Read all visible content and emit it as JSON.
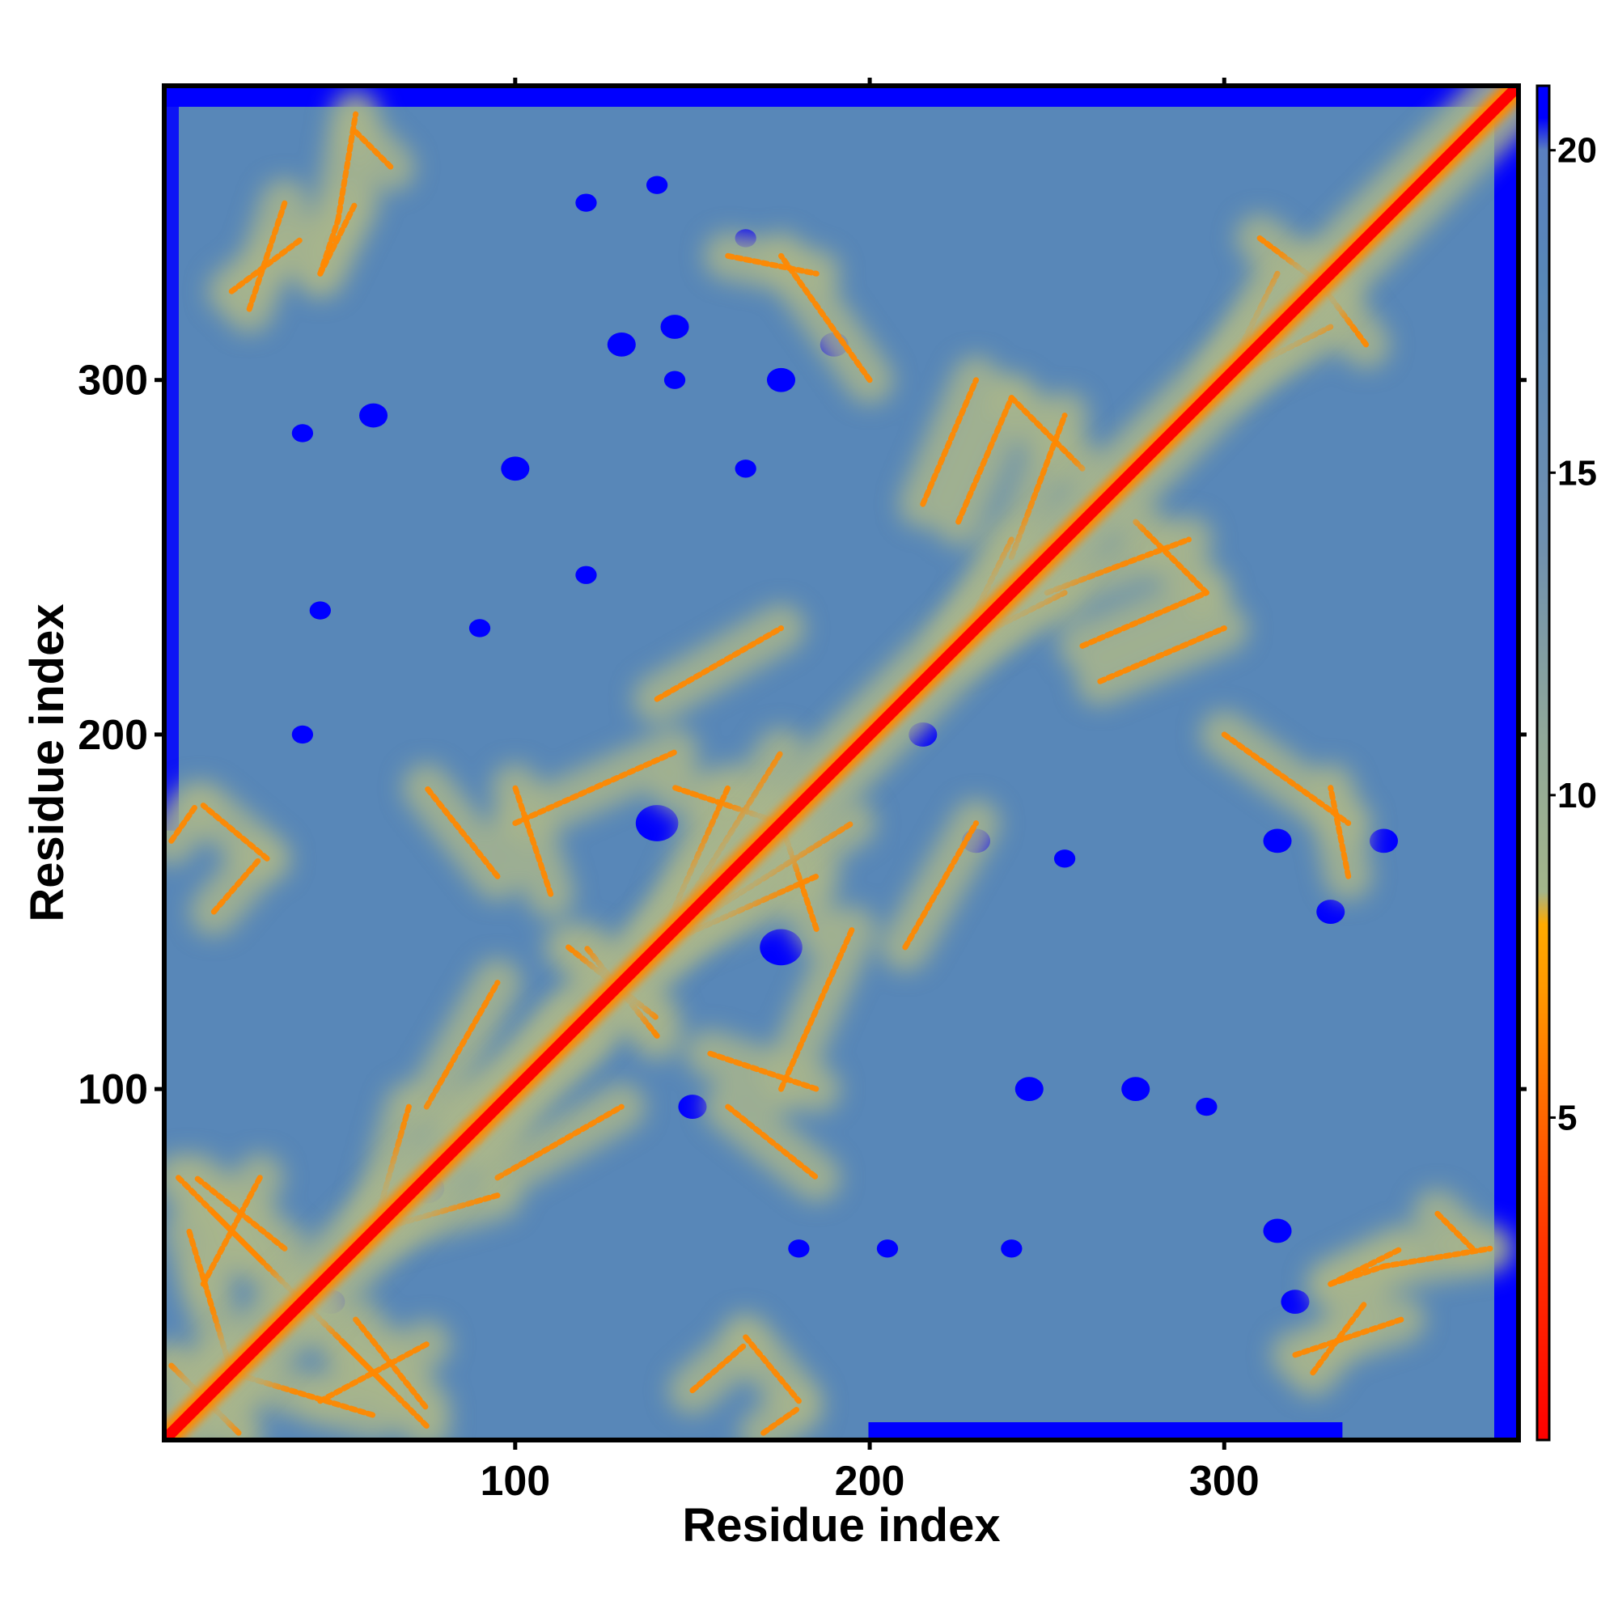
{
  "chart_data": {
    "type": "heatmap",
    "title": "",
    "xlabel": "Residue index",
    "ylabel": "Residue index",
    "n_residues": 383,
    "xlim": [
      1,
      383
    ],
    "ylim": [
      1,
      383
    ],
    "x_ticks": [
      100,
      200,
      300
    ],
    "y_ticks": [
      100,
      200,
      300
    ],
    "x_tick_labels": [
      "100",
      "200",
      "300"
    ],
    "y_tick_labels": [
      "100",
      "200",
      "300"
    ],
    "colorbar": {
      "range": [
        0,
        21
      ],
      "ticks": [
        5,
        10,
        15,
        20
      ],
      "tick_labels": [
        "5",
        "10",
        "15",
        "20"
      ],
      "stops": [
        {
          "value": 0,
          "color": "#ff0000"
        },
        {
          "value": 3,
          "color": "#ff3300"
        },
        {
          "value": 5,
          "color": "#ff6600"
        },
        {
          "value": 7,
          "color": "#ff9900"
        },
        {
          "value": 8,
          "color": "#ffaa00"
        },
        {
          "value": 8.5,
          "color": "#a3b58a"
        },
        {
          "value": 11,
          "color": "#8fa79a"
        },
        {
          "value": 14,
          "color": "#6e8fb0"
        },
        {
          "value": 18,
          "color": "#5887b8"
        },
        {
          "value": 20,
          "color": "#5a7fbf"
        },
        {
          "value": 20.5,
          "color": "#0000ff"
        },
        {
          "value": 21,
          "color": "#0000ff"
        }
      ]
    },
    "colors": {
      "diagonal": "#ff0000",
      "contact_orange": "#ff8800",
      "mid_band": "#a8b58c",
      "background": "#5887b8",
      "far": "#0000ff"
    },
    "contact_segments": [
      {
        "from": [
          3,
          22
        ],
        "to": [
          22,
          3
        ],
        "value": 5
      },
      {
        "from": [
          5,
          75
        ],
        "to": [
          40,
          40
        ],
        "value": 7
      },
      {
        "from": [
          15,
          65
        ],
        "to": [
          28,
          52
        ],
        "value": 6
      },
      {
        "from": [
          20,
          20
        ],
        "to": [
          60,
          8
        ],
        "value": 7
      },
      {
        "from": [
          45,
          12
        ],
        "to": [
          75,
          28
        ],
        "value": 6
      },
      {
        "from": [
          55,
          35
        ],
        "to": [
          75,
          10
        ],
        "value": 6
      },
      {
        "from": [
          60,
          60
        ],
        "to": [
          95,
          70
        ],
        "value": 7
      },
      {
        "from": [
          75,
          95
        ],
        "to": [
          95,
          130
        ],
        "value": 7
      },
      {
        "from": [
          85,
          90
        ],
        "to": [
          120,
          115
        ],
        "value": 6
      },
      {
        "from": [
          100,
          175
        ],
        "to": [
          145,
          195
        ],
        "value": 7
      },
      {
        "from": [
          140,
          140
        ],
        "to": [
          185,
          160
        ],
        "value": 6
      },
      {
        "from": [
          150,
          155
        ],
        "to": [
          175,
          195
        ],
        "value": 7
      },
      {
        "from": [
          155,
          110
        ],
        "to": [
          185,
          100
        ],
        "value": 6
      },
      {
        "from": [
          160,
          95
        ],
        "to": [
          185,
          75
        ],
        "value": 7
      },
      {
        "from": [
          140,
          115
        ],
        "to": [
          120,
          140
        ],
        "value": 6
      },
      {
        "from": [
          175,
          175
        ],
        "to": [
          185,
          145
        ],
        "value": 6
      },
      {
        "from": [
          210,
          140
        ],
        "to": [
          230,
          175
        ],
        "value": 8
      },
      {
        "from": [
          225,
          225
        ],
        "to": [
          240,
          255
        ],
        "value": 6
      },
      {
        "from": [
          215,
          265
        ],
        "to": [
          230,
          300
        ],
        "value": 7
      },
      {
        "from": [
          240,
          295
        ],
        "to": [
          260,
          275
        ],
        "value": 6
      },
      {
        "from": [
          250,
          240
        ],
        "to": [
          290,
          255
        ],
        "value": 7
      },
      {
        "from": [
          260,
          225
        ],
        "to": [
          295,
          240
        ],
        "value": 6
      },
      {
        "from": [
          300,
          300
        ],
        "to": [
          330,
          315
        ],
        "value": 6
      },
      {
        "from": [
          310,
          340
        ],
        "to": [
          330,
          325
        ],
        "value": 7
      },
      {
        "from": [
          160,
          335
        ],
        "to": [
          185,
          330
        ],
        "value": 7
      },
      {
        "from": [
          165,
          30
        ],
        "to": [
          180,
          12
        ],
        "value": 7
      },
      {
        "from": [
          300,
          200
        ],
        "to": [
          335,
          175
        ],
        "value": 6
      },
      {
        "from": [
          330,
          45
        ],
        "to": [
          345,
          50
        ],
        "value": 7
      },
      {
        "from": [
          345,
          50
        ],
        "to": [
          375,
          55
        ],
        "value": 6
      },
      {
        "from": [
          325,
          20
        ],
        "to": [
          340,
          40
        ],
        "value": 7
      },
      {
        "from": [
          15,
          150
        ],
        "to": [
          28,
          165
        ],
        "value": 6
      },
      {
        "from": [
          3,
          170
        ],
        "to": [
          10,
          180
        ],
        "value": 8
      },
      {
        "from": [
          45,
          330
        ],
        "to": [
          55,
          350
        ],
        "value": 6
      },
      {
        "from": [
          25,
          320
        ],
        "to": [
          35,
          350
        ],
        "value": 7
      },
      {
        "from": [
          55,
          370
        ],
        "to": [
          65,
          360
        ],
        "value": 6
      }
    ],
    "far_blobs": [
      {
        "x": 140,
        "y": 175,
        "r": 6
      },
      {
        "x": 175,
        "y": 140,
        "r": 6
      },
      {
        "x": 48,
        "y": 40,
        "r": 4
      },
      {
        "x": 75,
        "y": 72,
        "r": 5
      },
      {
        "x": 150,
        "y": 95,
        "r": 4
      },
      {
        "x": 180,
        "y": 55,
        "r": 3
      },
      {
        "x": 215,
        "y": 200,
        "r": 4
      },
      {
        "x": 230,
        "y": 170,
        "r": 4
      },
      {
        "x": 245,
        "y": 100,
        "r": 4
      },
      {
        "x": 275,
        "y": 100,
        "r": 4
      },
      {
        "x": 295,
        "y": 95,
        "r": 3
      },
      {
        "x": 330,
        "y": 150,
        "r": 4
      },
      {
        "x": 315,
        "y": 170,
        "r": 4
      },
      {
        "x": 345,
        "y": 170,
        "r": 4
      },
      {
        "x": 255,
        "y": 165,
        "r": 3
      },
      {
        "x": 315,
        "y": 60,
        "r": 4
      },
      {
        "x": 320,
        "y": 40,
        "r": 4
      },
      {
        "x": 240,
        "y": 55,
        "r": 3
      },
      {
        "x": 205,
        "y": 55,
        "r": 3
      },
      {
        "x": 175,
        "y": 300,
        "r": 4
      },
      {
        "x": 190,
        "y": 310,
        "r": 4
      },
      {
        "x": 165,
        "y": 275,
        "r": 3
      },
      {
        "x": 60,
        "y": 290,
        "r": 4
      },
      {
        "x": 40,
        "y": 285,
        "r": 3
      },
      {
        "x": 100,
        "y": 275,
        "r": 4
      },
      {
        "x": 130,
        "y": 310,
        "r": 4
      },
      {
        "x": 145,
        "y": 315,
        "r": 4
      },
      {
        "x": 40,
        "y": 200,
        "r": 3
      },
      {
        "x": 45,
        "y": 235,
        "r": 3
      },
      {
        "x": 90,
        "y": 230,
        "r": 3
      },
      {
        "x": 120,
        "y": 245,
        "r": 3
      },
      {
        "x": 145,
        "y": 300,
        "r": 3
      },
      {
        "x": 165,
        "y": 340,
        "r": 3
      },
      {
        "x": 120,
        "y": 350,
        "r": 3
      },
      {
        "x": 140,
        "y": 355,
        "r": 3
      }
    ]
  }
}
